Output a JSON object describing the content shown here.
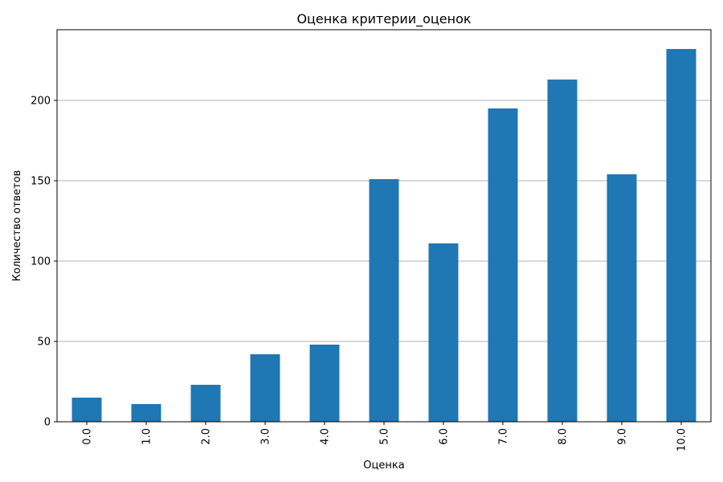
{
  "chart_data": {
    "type": "bar",
    "title": "Оценка критерии_оценок",
    "xlabel": "Оценка",
    "ylabel": "Количество ответов",
    "categories": [
      "0.0",
      "1.0",
      "2.0",
      "3.0",
      "4.0",
      "5.0",
      "6.0",
      "7.0",
      "8.0",
      "9.0",
      "10.0"
    ],
    "values": [
      15,
      11,
      23,
      42,
      48,
      151,
      111,
      195,
      213,
      154,
      232
    ],
    "ylim": [
      0,
      244
    ],
    "yticks": [
      0,
      50,
      100,
      150,
      200
    ],
    "ytick_labels": [
      "0",
      "50",
      "100",
      "150",
      "200"
    ],
    "grid": "y",
    "bar_color": "#1f77b4",
    "grid_color": "#b0b0b0",
    "xtick_rotation": "vertical"
  }
}
